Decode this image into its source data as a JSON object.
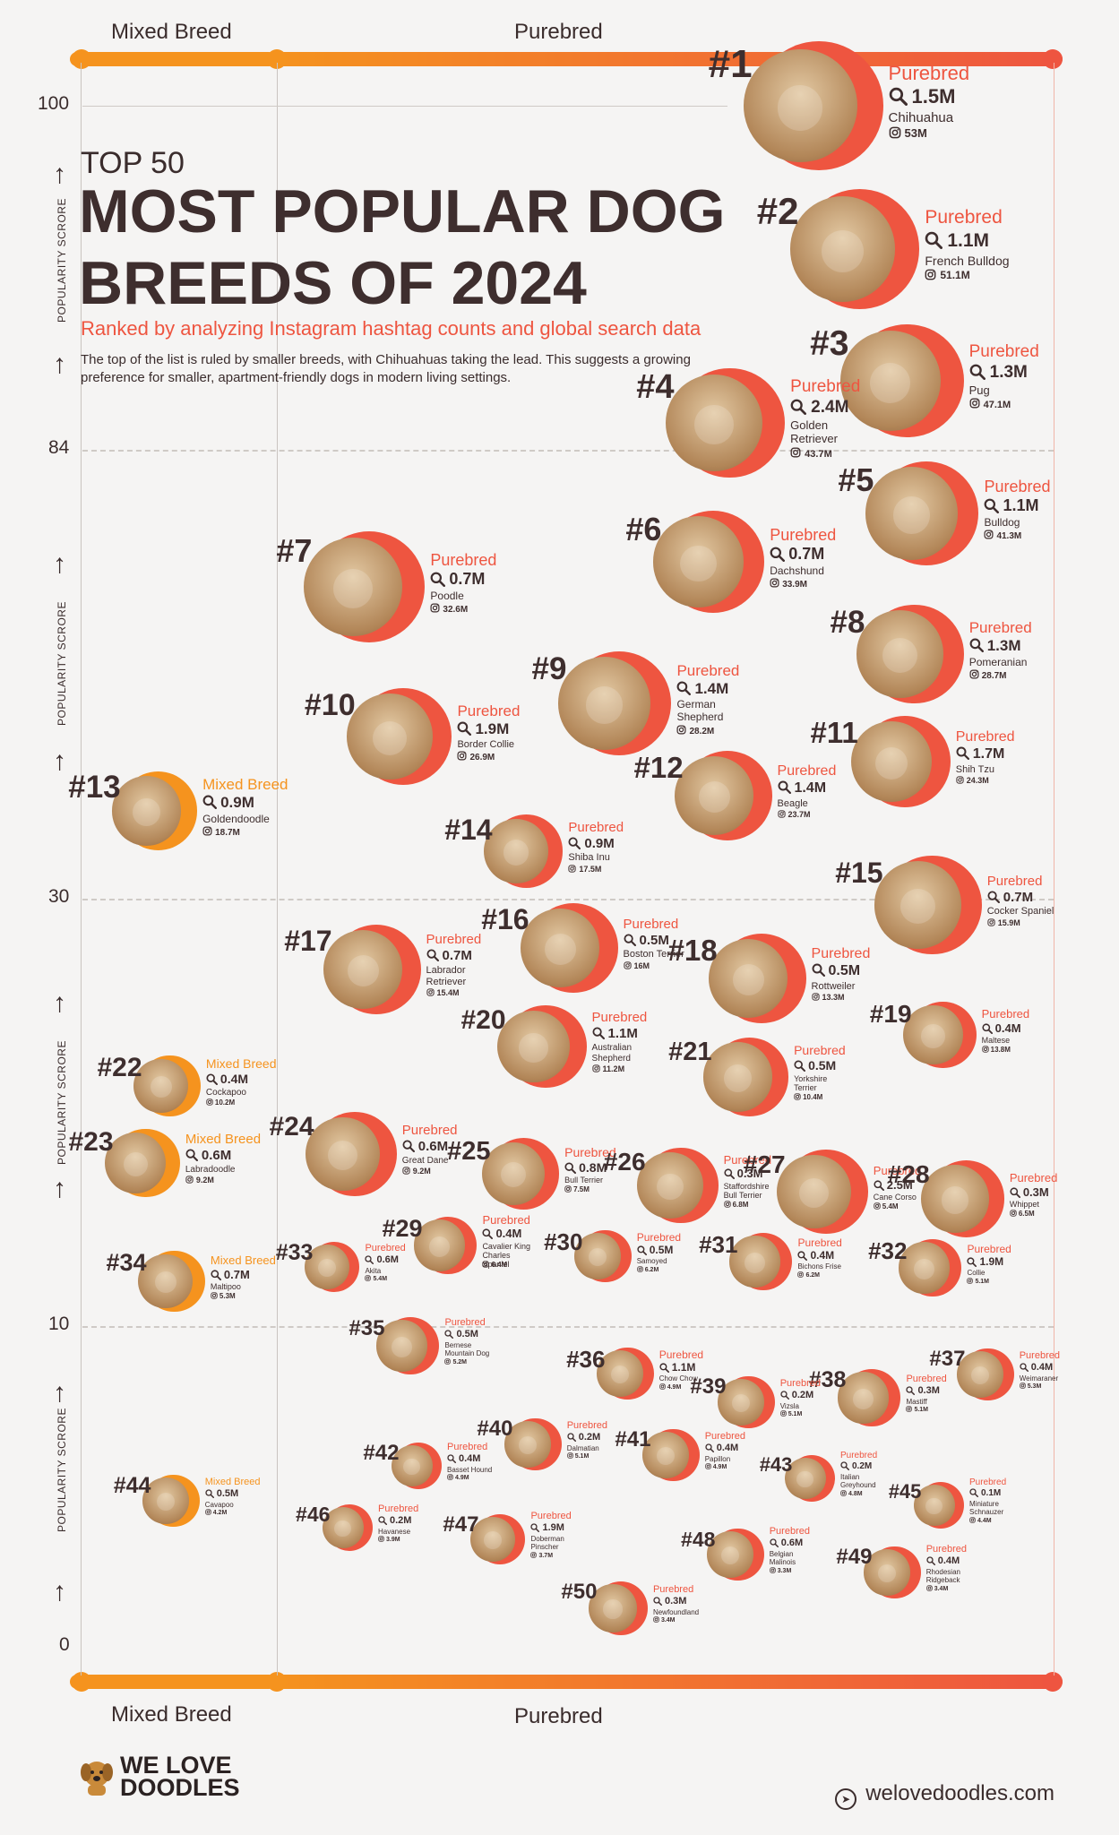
{
  "header": {
    "category_left": "Mixed Breed",
    "category_right": "Purebred",
    "title_top": "TOP 50",
    "title_main": "MOST POPULAR DOG BREEDS OF 2024",
    "subtitle": "Ranked by analyzing Instagram hashtag counts and global search data",
    "description": "The top of the list is ruled by smaller breeds, with Chihuahuas taking the lead. This suggests a growing preference for smaller, apartment-friendly dogs in modern living settings."
  },
  "footer": {
    "category_left": "Mixed Breed",
    "category_right": "Purebred",
    "logo_line1": "WE LOVE",
    "logo_line2": "DOODLES",
    "website": "welovedoodles.com"
  },
  "colors": {
    "purebred": "#ee5540",
    "mixed": "#f5931e",
    "text": "#3e2e2e"
  },
  "icons": {
    "search": "search-icon",
    "instagram": "instagram-icon",
    "logo": "dog-logo-icon",
    "cursor": "cursor-icon"
  },
  "chart_data": {
    "type": "scatter",
    "xlabel": "",
    "ylabel": "POPULARITY SCRORE",
    "x_categories": [
      "Mixed Breed",
      "Purebred"
    ],
    "y_ticks": [
      100,
      84,
      30,
      10,
      0
    ],
    "grid_lines": [
      84,
      30,
      10
    ],
    "points": [
      {
        "rank": 1,
        "name": "Chihuahua",
        "type": "Purebred",
        "search": "1.5M",
        "instagram": "53M"
      },
      {
        "rank": 2,
        "name": "French Bulldog",
        "type": "Purebred",
        "search": "1.1M",
        "instagram": "51.1M"
      },
      {
        "rank": 3,
        "name": "Pug",
        "type": "Purebred",
        "search": "1.3M",
        "instagram": "47.1M"
      },
      {
        "rank": 4,
        "name": "Golden Retriever",
        "type": "Purebred",
        "search": "2.4M",
        "instagram": "43.7M"
      },
      {
        "rank": 5,
        "name": "Bulldog",
        "type": "Purebred",
        "search": "1.1M",
        "instagram": "41.3M"
      },
      {
        "rank": 6,
        "name": "Dachshund",
        "type": "Purebred",
        "search": "0.7M",
        "instagram": "33.9M"
      },
      {
        "rank": 7,
        "name": "Poodle",
        "type": "Purebred",
        "search": "0.7M",
        "instagram": "32.6M"
      },
      {
        "rank": 8,
        "name": "Pomeranian",
        "type": "Purebred",
        "search": "1.3M",
        "instagram": "28.7M"
      },
      {
        "rank": 9,
        "name": "German Shepherd",
        "type": "Purebred",
        "search": "1.4M",
        "instagram": "28.2M"
      },
      {
        "rank": 10,
        "name": "Border Collie",
        "type": "Purebred",
        "search": "1.9M",
        "instagram": "26.9M"
      },
      {
        "rank": 11,
        "name": "Shih Tzu",
        "type": "Purebred",
        "search": "1.7M",
        "instagram": "24.3M"
      },
      {
        "rank": 12,
        "name": "Beagle",
        "type": "Purebred",
        "search": "1.4M",
        "instagram": "23.7M"
      },
      {
        "rank": 13,
        "name": "Goldendoodle",
        "type": "Mixed Breed",
        "search": "0.9M",
        "instagram": "18.7M"
      },
      {
        "rank": 14,
        "name": "Shiba Inu",
        "type": "Purebred",
        "search": "0.9M",
        "instagram": "17.5M"
      },
      {
        "rank": 15,
        "name": "Cocker Spaniel",
        "type": "Purebred",
        "search": "0.7M",
        "instagram": "15.9M"
      },
      {
        "rank": 16,
        "name": "Boston Terrier",
        "type": "Purebred",
        "search": "0.5M",
        "instagram": "16M"
      },
      {
        "rank": 17,
        "name": "Labrador Retriever",
        "type": "Purebred",
        "search": "0.7M",
        "instagram": "15.4M"
      },
      {
        "rank": 18,
        "name": "Rottweiler",
        "type": "Purebred",
        "search": "0.5M",
        "instagram": "13.3M"
      },
      {
        "rank": 19,
        "name": "Maltese",
        "type": "Purebred",
        "search": "0.4M",
        "instagram": "13.8M"
      },
      {
        "rank": 20,
        "name": "Australian Shepherd",
        "type": "Purebred",
        "search": "1.1M",
        "instagram": "11.2M"
      },
      {
        "rank": 21,
        "name": "Yorkshire Terrier",
        "type": "Purebred",
        "search": "0.5M",
        "instagram": "10.4M"
      },
      {
        "rank": 22,
        "name": "Cockapoo",
        "type": "Mixed Breed",
        "search": "0.4M",
        "instagram": "10.2M"
      },
      {
        "rank": 23,
        "name": "Labradoodle",
        "type": "Mixed Breed",
        "search": "0.6M",
        "instagram": "9.2M"
      },
      {
        "rank": 24,
        "name": "Great Dane",
        "type": "Purebred",
        "search": "0.6M",
        "instagram": "9.2M"
      },
      {
        "rank": 25,
        "name": "Bull Terrier",
        "type": "Purebred",
        "search": "0.8M",
        "instagram": "7.5M"
      },
      {
        "rank": 26,
        "name": "Staffordshire Bull Terrier",
        "type": "Purebred",
        "search": "0.3M",
        "instagram": "6.8M"
      },
      {
        "rank": 27,
        "name": "Cane Corso",
        "type": "Purebred",
        "search": "2.5M",
        "instagram": "5.4M"
      },
      {
        "rank": 28,
        "name": "Whippet",
        "type": "Purebred",
        "search": "0.3M",
        "instagram": "6.5M"
      },
      {
        "rank": 29,
        "name": "Cavalier King Charles Spaniel",
        "type": "Purebred",
        "search": "0.4M",
        "instagram": "6.4M"
      },
      {
        "rank": 30,
        "name": "Samoyed",
        "type": "Purebred",
        "search": "0.5M",
        "instagram": "6.2M"
      },
      {
        "rank": 31,
        "name": "Bichons Frise",
        "type": "Purebred",
        "search": "0.4M",
        "instagram": "6.2M"
      },
      {
        "rank": 32,
        "name": "Collie",
        "type": "Purebred",
        "search": "1.9M",
        "instagram": "5.1M"
      },
      {
        "rank": 33,
        "name": "Akita",
        "type": "Purebred",
        "search": "0.6M",
        "instagram": "5.4M"
      },
      {
        "rank": 34,
        "name": "Maltipoo",
        "type": "Mixed Breed",
        "search": "0.7M",
        "instagram": "5.3M"
      },
      {
        "rank": 35,
        "name": "Bernese Mountain Dog",
        "type": "Purebred",
        "search": "0.5M",
        "instagram": "5.2M"
      },
      {
        "rank": 36,
        "name": "Chow Chow",
        "type": "Purebred",
        "search": "1.1M",
        "instagram": "4.9M"
      },
      {
        "rank": 37,
        "name": "Weimaraner",
        "type": "Purebred",
        "search": "0.4M",
        "instagram": "5.3M"
      },
      {
        "rank": 38,
        "name": "Mastiff",
        "type": "Purebred",
        "search": "0.3M",
        "instagram": "5.1M"
      },
      {
        "rank": 39,
        "name": "Vizsla",
        "type": "Purebred",
        "search": "0.2M",
        "instagram": "5.1M"
      },
      {
        "rank": 40,
        "name": "Dalmatian",
        "type": "Purebred",
        "search": "0.2M",
        "instagram": "5.1M"
      },
      {
        "rank": 41,
        "name": "Papillon",
        "type": "Purebred",
        "search": "0.4M",
        "instagram": "4.9M"
      },
      {
        "rank": 42,
        "name": "Basset Hound",
        "type": "Purebred",
        "search": "0.4M",
        "instagram": "4.9M"
      },
      {
        "rank": 43,
        "name": "Italian Greyhound",
        "type": "Purebred",
        "search": "0.2M",
        "instagram": "4.8M"
      },
      {
        "rank": 44,
        "name": "Cavapoo",
        "type": "Mixed Breed",
        "search": "0.5M",
        "instagram": "4.2M"
      },
      {
        "rank": 45,
        "name": "Miniature Schnauzer",
        "type": "Purebred",
        "search": "0.1M",
        "instagram": "4.4M"
      },
      {
        "rank": 46,
        "name": "Havanese",
        "type": "Purebred",
        "search": "0.2M",
        "instagram": "3.9M"
      },
      {
        "rank": 47,
        "name": "Doberman Pinscher",
        "type": "Purebred",
        "search": "1.9M",
        "instagram": "3.7M"
      },
      {
        "rank": 48,
        "name": "Belgian Malinois",
        "type": "Purebred",
        "search": "0.6M",
        "instagram": "3.3M"
      },
      {
        "rank": 49,
        "name": "Rhodesian Ridgeback",
        "type": "Purebred",
        "search": "0.4M",
        "instagram": "3.4M"
      },
      {
        "rank": 50,
        "name": "Newfoundland",
        "type": "Purebred",
        "search": "0.3M",
        "instagram": "3.4M"
      }
    ]
  }
}
